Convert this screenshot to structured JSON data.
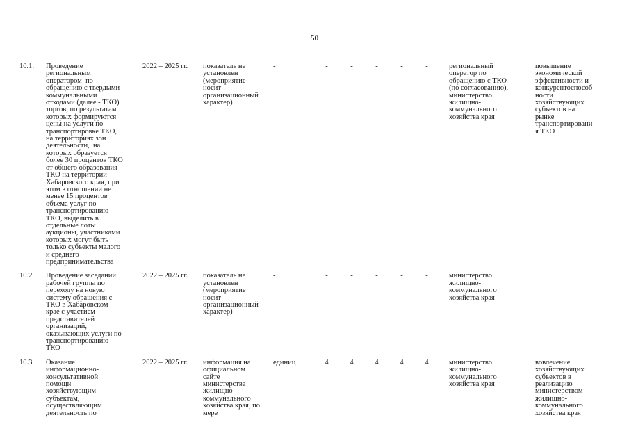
{
  "page": {
    "number": "50"
  },
  "table": {
    "rows": [
      {
        "num": "10.1.",
        "activity": "Проведение\nрегиональным\nоператором  по\nобращению с твердыми\nкоммунальными\nотходами (далее - ТКО)\nторгов, по результатам\nкоторых формируются\nцены на услуги по\nтранспортировке ТКО,\nна территориях зон\nдеятельности,  на\nкоторых образуется\nболее 30 процентов ТКО\nот общего образования\nТКО на территории\nХабаровского края, при\nэтом в отношении не\nменее 15 процентов\nобъема услуг по\nтранспортированию\nТКО, выделить в\nотдельные лоты\nаукционы, участниками\nкоторых могут быть\nтолько субъекты малого\nи среднего\nпредпринимательства",
        "period": "2022 – 2025 гг.",
        "indicator": "показатель не\nустановлен\n(мероприятие\nносит\nорганизационный\nхарактер)",
        "unit": "-",
        "values": [
          "-",
          "-",
          "-",
          "-",
          "-"
        ],
        "responsible": "региональный\nоператор по\nобращению с ТКО\n(по согласованию),\nминистерство\nжилищно-\nкоммунального\nхозяйства края",
        "result": "повышение\nэкономической\nэффективности и\nконкурентоспособ\nности\nхозяйствующих\nсубъектов на\nрынке\nтранспортировани\nя ТКО"
      },
      {
        "num": "10.2.",
        "activity": "Проведение заседаний\nрабочей группы по\nпереходу на новую\nсистему обращения с\nТКО в Хабаровском\nкрае с участием\nпредставителей\nорганизаций,\nоказывающих услуги по\nтранспортированию\nТКО",
        "period": "2022 – 2025 гг.",
        "indicator": "показатель не\nустановлен\n(мероприятие\nносит\nорганизационный\nхарактер)",
        "unit": "-",
        "values": [
          "-",
          "-",
          "-",
          "-",
          "-"
        ],
        "responsible": "министерство\nжилищно-\nкоммунального\nхозяйства края",
        "result": ""
      },
      {
        "num": "10.3.",
        "activity": "Оказание\nинформационно-\nконсультативной\nпомощи\nхозяйствующим\nсубъектам,\nосуществляющим\nдеятельность по",
        "period": "2022 – 2025 гг.",
        "indicator": "информация на\nофициальном\nсайте\nминистерства\nжилищно-\nкоммунального\nхозяйства края, по\nмере",
        "unit": "единиц",
        "values": [
          "4",
          "4",
          "4",
          "4",
          "4"
        ],
        "responsible": "министерство\nжилищно-\nкоммунального\nхозяйства края",
        "result": "вовлечение\nхозяйствующих\nсубъектов в\nреализацию\nминистерством\nжилищно-\nкоммунального\nхозяйства края"
      }
    ]
  }
}
